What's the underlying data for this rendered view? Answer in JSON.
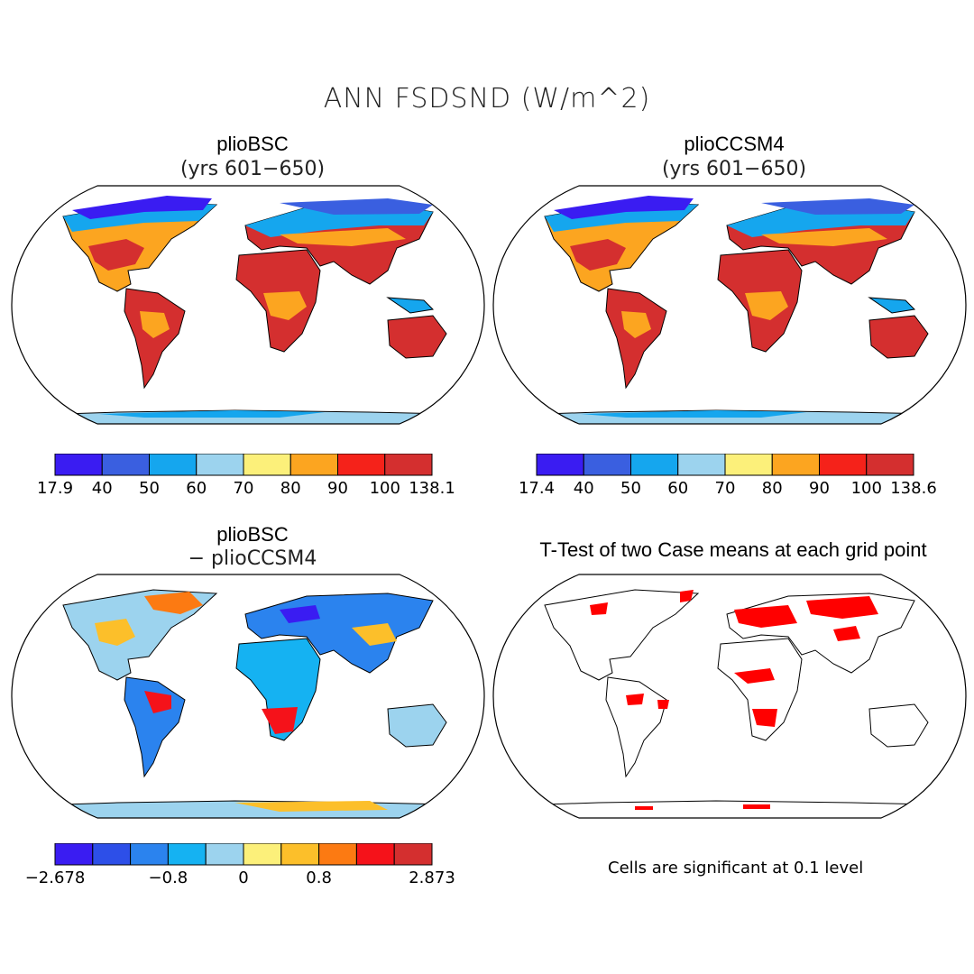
{
  "figure_title": "ANN FSDSND (W/m^2)",
  "panels": {
    "top_left": {
      "title": "plioBSC",
      "subtitle": "(yrs 601−650)"
    },
    "top_right": {
      "title": "plioCCSM4",
      "subtitle": "(yrs 601−650)"
    },
    "bottom_left": {
      "title": "plioBSC",
      "subtitle": "− plioCCSM4"
    },
    "bottom_right": {
      "title": "T-Test of two Case means at each grid point",
      "note": "Cells are significant at 0.1 level"
    }
  },
  "colorbars": {
    "top_left": {
      "colors": [
        "#3a1cf2",
        "#3a5fe0",
        "#15a6ee",
        "#9cd3ee",
        "#fcf07a",
        "#fca520",
        "#f5221a",
        "#d42f2f"
      ],
      "labels": [
        "17.9",
        "40",
        "50",
        "60",
        "70",
        "80",
        "90",
        "100",
        "138.1"
      ]
    },
    "top_right": {
      "colors": [
        "#3a1cf2",
        "#3a5fe0",
        "#15a6ee",
        "#9cd3ee",
        "#fcf07a",
        "#fca520",
        "#f5221a",
        "#d42f2f"
      ],
      "labels": [
        "17.4",
        "40",
        "50",
        "60",
        "70",
        "80",
        "90",
        "100",
        "138.6"
      ]
    },
    "bottom_left": {
      "colors": [
        "#3a1cf2",
        "#2d4fe8",
        "#2b83ee",
        "#15b2f2",
        "#9cd3ee",
        "#fcf07a",
        "#fcbf2a",
        "#fc7a12",
        "#f5121a",
        "#d42f2f"
      ],
      "labels": [
        "−2.678",
        "−0.8",
        "0",
        "0.8",
        "2.873"
      ],
      "label_bounds": [
        0,
        3,
        5,
        7,
        10
      ]
    }
  },
  "map_colors": {
    "ocean": "#ffffff",
    "significant": "#ff0000"
  }
}
